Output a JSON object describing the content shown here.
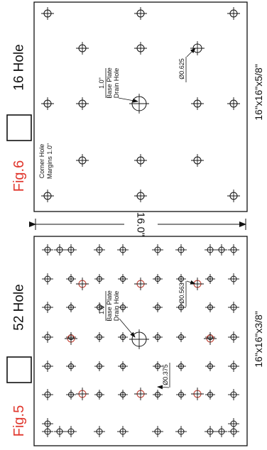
{
  "figures": [
    {
      "id": "fig5",
      "fig_label": "Fig.5",
      "hole_count_label": "52 Hole",
      "size_label": "16\"x16\"x3/8\"",
      "notes": {
        "drain": [
          "1.0\"",
          "Base Plate",
          "Drain Hole"
        ],
        "dia_large": "Ø0.563",
        "dia_small": "Ø0.375"
      }
    },
    {
      "id": "fig6",
      "fig_label": "Fig.6",
      "hole_count_label": "16 Hole",
      "size_label": "16\"x16\"x5/8\"",
      "notes": {
        "drain": [
          "1.0\"",
          "Base Plate",
          "Drain Hole"
        ],
        "dia_large": "Ø0.625",
        "corner": [
          "Corner Hole",
          "Margins 1.0\""
        ]
      }
    }
  ],
  "dimension": "16.0\"",
  "colors": {
    "label_red": "#e0362c",
    "ink": "#111111",
    "highlight_hole": "#c0392b"
  }
}
